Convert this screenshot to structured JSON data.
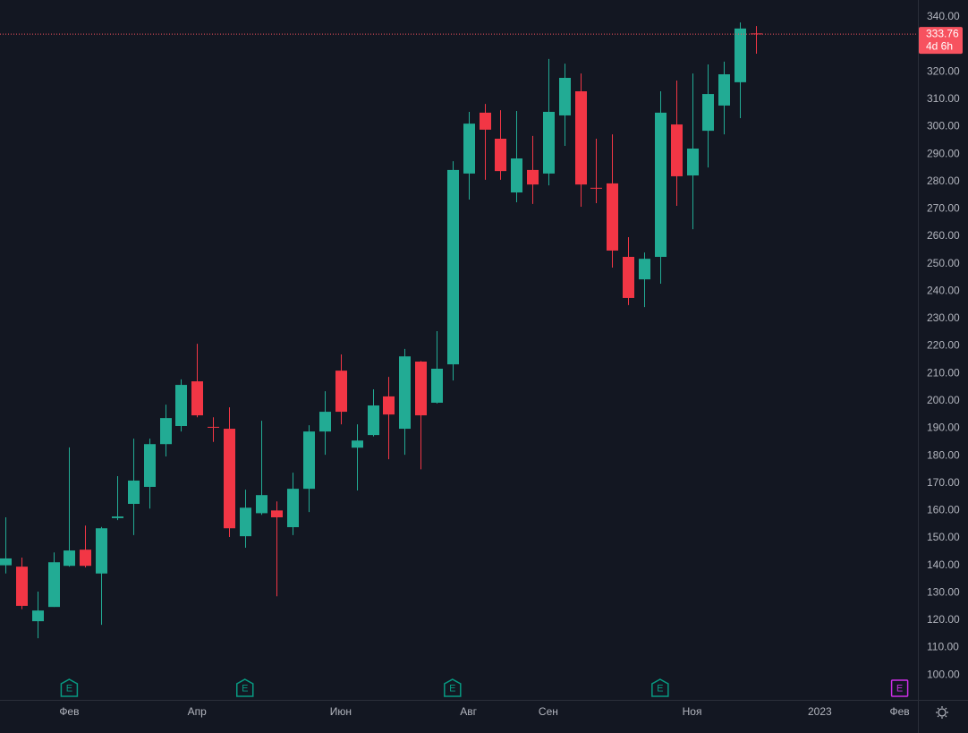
{
  "chart_data": {
    "type": "candlestick",
    "up_color": "#22ab94",
    "down_color": "#f23645",
    "categories": [
      null,
      null,
      null,
      null,
      "Фев",
      null,
      null,
      null,
      null,
      null,
      null,
      null,
      "Апр",
      null,
      null,
      null,
      null,
      null,
      null,
      null,
      null,
      "Июн",
      null,
      null,
      null,
      null,
      null,
      null,
      null,
      "Авг",
      null,
      null,
      null,
      null,
      "Сен",
      null,
      null,
      null,
      null,
      null,
      null,
      null,
      null,
      "Ноя",
      null,
      null,
      null,
      null,
      null,
      null,
      null,
      "2023",
      null,
      null,
      null,
      null,
      "Фев"
    ],
    "open": [
      140,
      139.5,
      119.6,
      124.8,
      139.8,
      145.7,
      137,
      157.2,
      162.4,
      168.6,
      184.2,
      190.8,
      207.1,
      190.5,
      189.8,
      150.6,
      159,
      160,
      153.9,
      167.9,
      188.8,
      211,
      182.9,
      187.5,
      201.6,
      189.8,
      214.3,
      199.3,
      213.3,
      282.9,
      305.1,
      295.6,
      276,
      284.2,
      282.9,
      304.1,
      312.9,
      277.7,
      279.3,
      252.5,
      244.3,
      252.5,
      300.8,
      282.2,
      298.5,
      307.7,
      316.2,
      334,
      null,
      null,
      null,
      null,
      null,
      null,
      null,
      null,
      null
    ],
    "high": [
      157.5,
      142.8,
      130.4,
      144.7,
      183,
      154.5,
      154,
      172.5,
      186.2,
      186.2,
      198.6,
      207.8,
      220.8,
      194,
      197.6,
      167.6,
      192.7,
      163.3,
      173.8,
      191.1,
      203.5,
      216.9,
      191.4,
      204.2,
      208.7,
      218.9,
      214.5,
      225.4,
      287.4,
      305.4,
      308.3,
      306,
      305.7,
      296.6,
      324.7,
      323,
      319.4,
      295.6,
      297.2,
      259.7,
      254.1,
      312.9,
      316.8,
      319.4,
      322.7,
      323.7,
      338,
      336.7,
      null,
      null,
      null,
      null,
      null,
      null,
      null,
      null,
      null
    ],
    "low": [
      137,
      124,
      113.4,
      124.8,
      139.5,
      139.2,
      118.3,
      156.5,
      151,
      160.7,
      179.7,
      188.8,
      194,
      185,
      150.3,
      146.4,
      158.4,
      128.7,
      151,
      159.4,
      180.3,
      191.4,
      167.3,
      187,
      178.7,
      180.3,
      175,
      199,
      207.4,
      273.4,
      280.6,
      280.6,
      272.4,
      271.8,
      278.6,
      293,
      270.8,
      272.1,
      248.6,
      234.9,
      234.2,
      242.7,
      271.1,
      262.6,
      285.1,
      297.2,
      303.1,
      326.6,
      null,
      null,
      null,
      null,
      null,
      null,
      null,
      null,
      null
    ],
    "close": [
      142.5,
      125.2,
      123.5,
      141.1,
      145.4,
      139.8,
      153.5,
      157.8,
      170.9,
      184.2,
      193.7,
      205.8,
      194.7,
      190.3,
      153.5,
      161,
      165.6,
      157.5,
      167.9,
      188.8,
      196,
      196,
      185.5,
      198.3,
      195,
      216.2,
      194.7,
      211.7,
      284.2,
      301.1,
      298.9,
      283.8,
      288.4,
      278.9,
      305.4,
      317.8,
      278.9,
      277.5,
      254.8,
      237.5,
      251.8,
      305.1,
      281.9,
      292,
      311.9,
      319.1,
      335.8,
      333.76,
      null,
      null,
      null,
      null,
      null,
      null,
      null,
      null,
      null
    ],
    "events": [
      null,
      null,
      null,
      null,
      {
        "label": "E",
        "color": "#089981"
      },
      null,
      null,
      null,
      null,
      null,
      null,
      null,
      null,
      null,
      null,
      {
        "label": "E",
        "color": "#089981"
      },
      null,
      null,
      null,
      null,
      null,
      null,
      null,
      null,
      null,
      null,
      null,
      null,
      {
        "label": "E",
        "color": "#089981"
      },
      null,
      null,
      null,
      null,
      null,
      null,
      null,
      null,
      null,
      null,
      null,
      null,
      {
        "label": "E",
        "color": "#089981"
      },
      null,
      null,
      null,
      null,
      null,
      null,
      null,
      null,
      null,
      null,
      null,
      null,
      null,
      null,
      {
        "label": "E",
        "color": "#cc2ee6"
      }
    ],
    "countdown": "4d 6h",
    "last_price_color": "#f7525f",
    "ylim": [
      90.9,
      346.2
    ],
    "yticks": [
      {
        "value": 100,
        "label": "100.00"
      },
      {
        "value": 110,
        "label": "110.00"
      },
      {
        "value": 120,
        "label": "120.00"
      },
      {
        "value": 130,
        "label": "130.00"
      },
      {
        "value": 140,
        "label": "140.00"
      },
      {
        "value": 150,
        "label": "150.00"
      },
      {
        "value": 160,
        "label": "160.00"
      },
      {
        "value": 170,
        "label": "170.00"
      },
      {
        "value": 180,
        "label": "180.00"
      },
      {
        "value": 190,
        "label": "190.00"
      },
      {
        "value": 200,
        "label": "200.00"
      },
      {
        "value": 210,
        "label": "210.00"
      },
      {
        "value": 220,
        "label": "220.00"
      },
      {
        "value": 230,
        "label": "230.00"
      },
      {
        "value": 240,
        "label": "240.00"
      },
      {
        "value": 250,
        "label": "250.00"
      },
      {
        "value": 260,
        "label": "260.00"
      },
      {
        "value": 270,
        "label": "270.00"
      },
      {
        "value": 280,
        "label": "280.00"
      },
      {
        "value": 290,
        "label": "290.00"
      },
      {
        "value": 300,
        "label": "300.00"
      },
      {
        "value": 310,
        "label": "310.00"
      },
      {
        "value": 320,
        "label": "320.00"
      },
      {
        "value": 330,
        "label": "330.00"
      },
      {
        "value": 340,
        "label": "340.00"
      }
    ],
    "grid": false
  }
}
